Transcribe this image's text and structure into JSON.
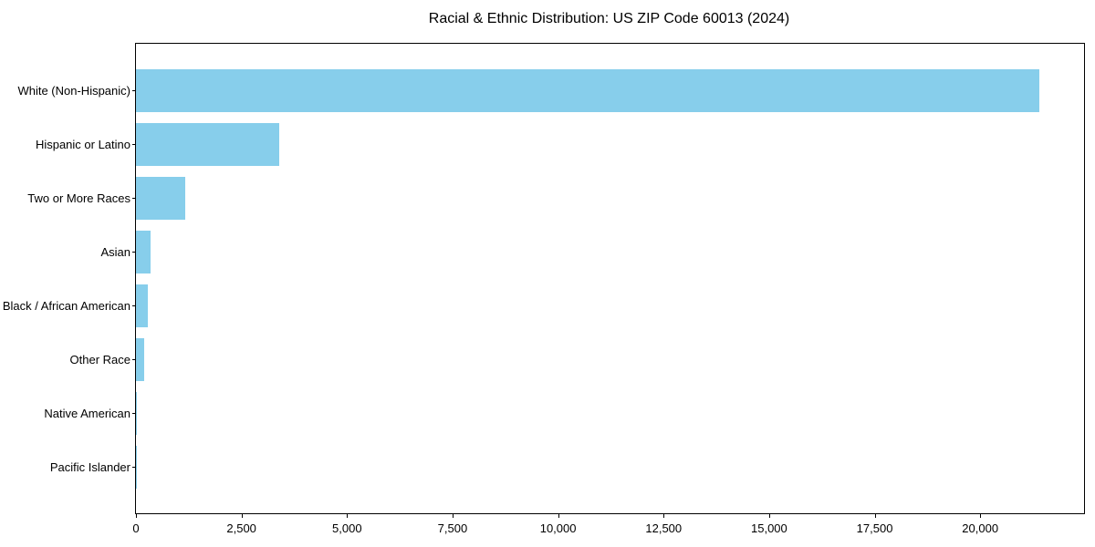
{
  "chart_data": {
    "type": "bar",
    "orientation": "horizontal",
    "title": "Racial & Ethnic Distribution: US ZIP Code 60013 (2024)",
    "categories": [
      "White (Non-Hispanic)",
      "Hispanic or Latino",
      "Two or More Races",
      "Asian",
      "Black / African American",
      "Other Race",
      "Native American",
      "Pacific Islander"
    ],
    "values": [
      21390,
      3400,
      1170,
      350,
      280,
      195,
      20,
      5
    ],
    "xlabel": "",
    "ylabel": "",
    "xlim": [
      0,
      22460
    ],
    "xticks": [
      0,
      2500,
      5000,
      7500,
      10000,
      12500,
      15000,
      17500,
      20000
    ],
    "xtick_labels": [
      "0",
      "2,500",
      "5,000",
      "7,500",
      "10,000",
      "12,500",
      "15,000",
      "17,500",
      "20,000"
    ],
    "bar_color": "#87CEEB",
    "grid": false,
    "legend": null
  }
}
